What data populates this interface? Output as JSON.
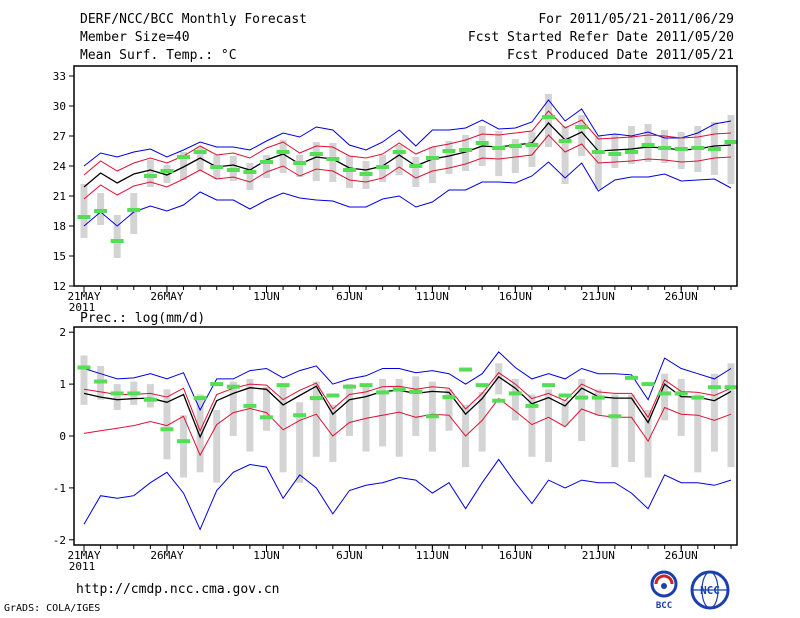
{
  "header": {
    "title": "DERF/NCC/BCC Monthly Forecast",
    "member_size": "Member Size=40",
    "variable": "Mean Surf. Temp.: °C",
    "period": "For 2011/05/21-2011/06/29",
    "started": "Fcst Started Refer Date 2011/05/20",
    "produced": "Fcst Produced Date 2011/05/21"
  },
  "footer": {
    "url": "http://cmdp.ncc.cma.gov.cn",
    "grads": "GrADS: COLA/IGES",
    "logo_bcc": "BCC",
    "logo_ncc": "NCC"
  },
  "colors": {
    "ensemble_mean": "#000000",
    "spread_lines": "#dd1133",
    "extreme_lines": "#0000dd",
    "box": "#d4d4d4",
    "median_marker": "#55dd55"
  },
  "chart_data": [
    {
      "type": "line",
      "title": "Mean Surf. Temp.: °C",
      "x_start": "21MAY 2011",
      "days": 40,
      "x_tick_labels": [
        "21MAY",
        "26MAY",
        "1JUN",
        "6JUN",
        "11JUN",
        "16JUN",
        "21JUN",
        "26JUN"
      ],
      "x_tick_days": [
        0,
        5,
        11,
        16,
        21,
        26,
        31,
        36
      ],
      "first_label_year": "2011",
      "ylim": [
        12,
        34
      ],
      "y_ticks": [
        12,
        15,
        18,
        21,
        24,
        27,
        30,
        33
      ],
      "series": [
        {
          "name": "ensemble mean",
          "color": "#000000",
          "values": [
            21.9,
            23.3,
            22.3,
            23.2,
            23.6,
            23.1,
            23.9,
            24.8,
            23.9,
            24.1,
            23.6,
            24.6,
            25.2,
            24.2,
            24.9,
            24.7,
            23.8,
            23.6,
            24.0,
            25.1,
            24.0,
            24.7,
            25.0,
            25.4,
            26.0,
            25.9,
            26.1,
            26.3,
            28.3,
            26.6,
            27.4,
            25.5,
            25.6,
            25.7,
            25.9,
            25.8,
            25.6,
            25.7,
            26.0,
            26.1
          ]
        },
        {
          "name": "mean + 1 std",
          "color": "#dd1133",
          "values": [
            23.1,
            24.5,
            23.5,
            24.3,
            24.8,
            24.3,
            25.0,
            26.0,
            25.1,
            25.3,
            24.8,
            25.8,
            26.4,
            25.3,
            26.0,
            25.9,
            25.0,
            24.8,
            25.2,
            26.3,
            25.2,
            25.9,
            26.2,
            26.6,
            27.2,
            27.1,
            27.3,
            27.5,
            29.5,
            27.8,
            28.6,
            26.7,
            26.8,
            26.9,
            27.1,
            27.0,
            26.8,
            26.9,
            27.2,
            27.3
          ]
        },
        {
          "name": "mean - 1 std",
          "color": "#dd1133",
          "values": [
            20.7,
            22.1,
            21.1,
            22.0,
            22.4,
            21.9,
            22.7,
            23.6,
            22.7,
            22.9,
            22.4,
            23.4,
            24.0,
            23.0,
            23.7,
            23.5,
            22.6,
            22.4,
            22.8,
            23.9,
            22.8,
            23.5,
            23.8,
            24.2,
            24.8,
            24.7,
            24.9,
            25.1,
            27.1,
            25.4,
            26.2,
            24.3,
            24.4,
            24.5,
            24.7,
            24.6,
            24.4,
            24.5,
            24.8,
            24.9
          ]
        },
        {
          "name": "ensemble max",
          "color": "#0000dd",
          "values": [
            24.0,
            25.3,
            24.9,
            25.4,
            25.7,
            24.9,
            25.6,
            26.4,
            25.9,
            25.9,
            25.6,
            26.5,
            27.3,
            26.9,
            27.9,
            27.6,
            26.1,
            25.6,
            26.4,
            27.6,
            26.0,
            27.6,
            27.6,
            27.8,
            28.6,
            27.7,
            27.8,
            28.4,
            30.6,
            28.5,
            29.7,
            27.0,
            27.2,
            27.0,
            27.4,
            26.8,
            26.8,
            27.3,
            28.2,
            28.5
          ]
        },
        {
          "name": "ensemble min",
          "color": "#0000dd",
          "values": [
            18.0,
            19.4,
            18.0,
            19.4,
            20.0,
            19.5,
            20.1,
            21.4,
            20.6,
            20.6,
            19.7,
            20.6,
            21.3,
            20.8,
            20.6,
            20.5,
            19.9,
            19.9,
            20.7,
            21.0,
            19.9,
            20.4,
            21.6,
            21.6,
            22.4,
            22.4,
            22.3,
            23.0,
            24.4,
            22.8,
            24.3,
            21.5,
            22.6,
            22.9,
            22.9,
            23.2,
            22.5,
            22.6,
            22.7,
            21.8
          ]
        }
      ],
      "boxes": {
        "name": "interquartile boxes",
        "color": "#d4d4d4",
        "low": [
          16.8,
          18.1,
          14.8,
          17.2,
          21.9,
          22.3,
          22.6,
          23.6,
          22.7,
          22.5,
          21.6,
          22.8,
          23.3,
          22.9,
          22.5,
          22.4,
          21.8,
          21.7,
          22.4,
          23.1,
          21.9,
          22.3,
          23.2,
          23.5,
          24.0,
          23.0,
          23.3,
          23.9,
          25.9,
          22.2,
          25.0,
          21.7,
          23.8,
          24.2,
          24.4,
          24.3,
          23.7,
          23.4,
          23.1,
          22.2
        ],
        "high": [
          22.2,
          21.3,
          19.1,
          21.3,
          24.6,
          24.1,
          25.4,
          25.9,
          25.1,
          25.0,
          24.3,
          25.1,
          26.6,
          25.1,
          26.4,
          26.3,
          25.0,
          24.5,
          25.1,
          26.1,
          24.9,
          25.9,
          26.5,
          27.1,
          28.0,
          27.5,
          26.7,
          27.4,
          31.2,
          28.0,
          29.1,
          27.0,
          27.2,
          28.0,
          28.2,
          27.6,
          27.4,
          28.0,
          28.4,
          29.1
        ]
      },
      "medians": {
        "name": "median",
        "color": "#55dd55",
        "values": [
          18.9,
          19.5,
          16.5,
          19.6,
          23.0,
          23.5,
          24.9,
          25.4,
          23.9,
          23.6,
          23.4,
          24.4,
          25.4,
          24.3,
          25.2,
          24.7,
          23.6,
          23.2,
          23.9,
          25.4,
          24.0,
          24.8,
          25.5,
          25.6,
          26.3,
          25.8,
          26.0,
          26.1,
          28.9,
          26.5,
          27.9,
          25.4,
          25.2,
          25.4,
          26.1,
          25.8,
          25.7,
          25.8,
          25.7,
          26.4
        ]
      }
    },
    {
      "type": "line",
      "title": "Prec.: log(mm/d)",
      "x_start": "21MAY 2011",
      "days": 40,
      "x_tick_labels": [
        "21MAY",
        "26MAY",
        "1JUN",
        "6JUN",
        "11JUN",
        "16JUN",
        "21JUN",
        "26JUN"
      ],
      "x_tick_days": [
        0,
        5,
        11,
        16,
        21,
        26,
        31,
        36
      ],
      "first_label_year": "2011",
      "ylim": [
        -2.1,
        2.1
      ],
      "y_ticks": [
        -2,
        -1,
        0,
        1,
        2
      ],
      "series": [
        {
          "name": "ensemble mean",
          "color": "#000000",
          "values": [
            0.82,
            0.75,
            0.7,
            0.72,
            0.73,
            0.65,
            0.8,
            -0.02,
            0.68,
            0.82,
            0.93,
            0.9,
            0.6,
            0.78,
            0.96,
            0.42,
            0.7,
            0.76,
            0.86,
            0.88,
            0.82,
            0.86,
            0.84,
            0.42,
            0.72,
            1.14,
            0.92,
            0.62,
            0.74,
            0.58,
            0.92,
            0.76,
            0.73,
            0.73,
            0.26,
            1.0,
            0.76,
            0.75,
            0.68,
            0.86
          ]
        },
        {
          "name": "mean + 1 std",
          "color": "#dd1133",
          "values": [
            0.9,
            0.85,
            0.8,
            0.8,
            0.82,
            0.75,
            0.92,
            0.1,
            0.8,
            0.92,
            1.0,
            0.98,
            0.7,
            0.88,
            1.02,
            0.52,
            0.8,
            0.85,
            0.95,
            0.96,
            0.9,
            0.95,
            0.92,
            0.52,
            0.82,
            1.22,
            1.0,
            0.72,
            0.82,
            0.68,
            1.0,
            0.85,
            0.82,
            0.82,
            0.36,
            1.08,
            0.86,
            0.84,
            0.78,
            0.92
          ]
        },
        {
          "name": "mean - 1 std",
          "color": "#dd1133",
          "values": [
            0.05,
            0.1,
            0.15,
            0.2,
            0.28,
            0.2,
            0.38,
            -0.37,
            0.22,
            0.45,
            0.53,
            0.45,
            0.12,
            0.3,
            0.42,
            0.0,
            0.26,
            0.34,
            0.4,
            0.46,
            0.36,
            0.42,
            0.4,
            0.0,
            0.3,
            0.72,
            0.48,
            0.22,
            0.36,
            0.18,
            0.52,
            0.4,
            0.36,
            0.36,
            -0.1,
            0.55,
            0.42,
            0.4,
            0.3,
            0.42
          ]
        },
        {
          "name": "ensemble max",
          "color": "#0000dd",
          "values": [
            1.3,
            1.2,
            1.1,
            1.12,
            1.2,
            1.1,
            1.22,
            0.5,
            1.1,
            1.1,
            1.26,
            1.3,
            1.12,
            1.26,
            1.35,
            1.0,
            1.1,
            1.16,
            1.3,
            1.3,
            1.22,
            1.26,
            1.2,
            1.0,
            1.2,
            1.62,
            1.32,
            1.1,
            1.2,
            1.1,
            1.3,
            1.2,
            1.2,
            1.18,
            0.7,
            1.5,
            1.3,
            1.2,
            1.1,
            1.3
          ]
        },
        {
          "name": "ensemble min",
          "color": "#0000dd",
          "values": [
            -1.7,
            -1.15,
            -1.2,
            -1.15,
            -0.9,
            -0.7,
            -1.1,
            -1.8,
            -1.05,
            -0.7,
            -0.55,
            -0.6,
            -1.2,
            -0.75,
            -1.0,
            -1.5,
            -1.05,
            -0.95,
            -0.9,
            -0.8,
            -0.85,
            -1.1,
            -0.9,
            -1.4,
            -0.9,
            -0.45,
            -0.9,
            -1.3,
            -0.85,
            -1.0,
            -0.85,
            -0.9,
            -0.9,
            -1.1,
            -1.4,
            -0.75,
            -0.9,
            -0.9,
            -0.95,
            -0.85
          ]
        },
        {
          "name": "",
          "color": "#0000dd",
          "values": []
        }
      ],
      "boxes": {
        "name": "interquartile boxes",
        "color": "#d4d4d4",
        "low": [
          0.6,
          0.7,
          0.5,
          0.6,
          0.55,
          -0.45,
          -0.8,
          -0.7,
          -0.9,
          0.0,
          -0.3,
          0.1,
          -0.7,
          -0.9,
          -0.4,
          -0.5,
          0.0,
          -0.3,
          -0.2,
          -0.4,
          0.0,
          -0.3,
          0.1,
          -0.6,
          -0.3,
          0.8,
          0.3,
          -0.4,
          -0.5,
          0.2,
          -0.1,
          0.4,
          -0.6,
          -0.5,
          -0.8,
          0.3,
          0.0,
          -0.7,
          -0.3,
          -0.6
        ],
        "high": [
          1.55,
          1.35,
          1.0,
          1.05,
          1.0,
          0.9,
          0.4,
          0.8,
          0.5,
          1.05,
          1.1,
          0.95,
          1.0,
          0.65,
          1.05,
          0.6,
          1.0,
          1.0,
          1.1,
          1.1,
          1.15,
          1.05,
          0.9,
          0.6,
          0.85,
          1.4,
          1.1,
          0.8,
          0.9,
          0.7,
          1.1,
          0.9,
          0.8,
          0.8,
          0.5,
          1.2,
          1.1,
          0.8,
          1.2,
          1.4
        ]
      },
      "medians": {
        "name": "median",
        "color": "#55dd55",
        "values": [
          1.32,
          1.05,
          0.82,
          0.82,
          0.7,
          0.13,
          -0.1,
          0.73,
          1.0,
          0.95,
          0.58,
          0.36,
          0.98,
          0.4,
          0.73,
          0.78,
          0.95,
          0.98,
          0.84,
          0.9,
          0.85,
          0.38,
          0.75,
          1.28,
          0.98,
          0.68,
          0.82,
          0.58,
          0.98,
          0.78,
          0.74,
          0.74,
          0.38,
          1.12,
          1.0,
          0.82,
          0.82,
          0.74,
          0.94,
          0.94
        ]
      }
    }
  ]
}
